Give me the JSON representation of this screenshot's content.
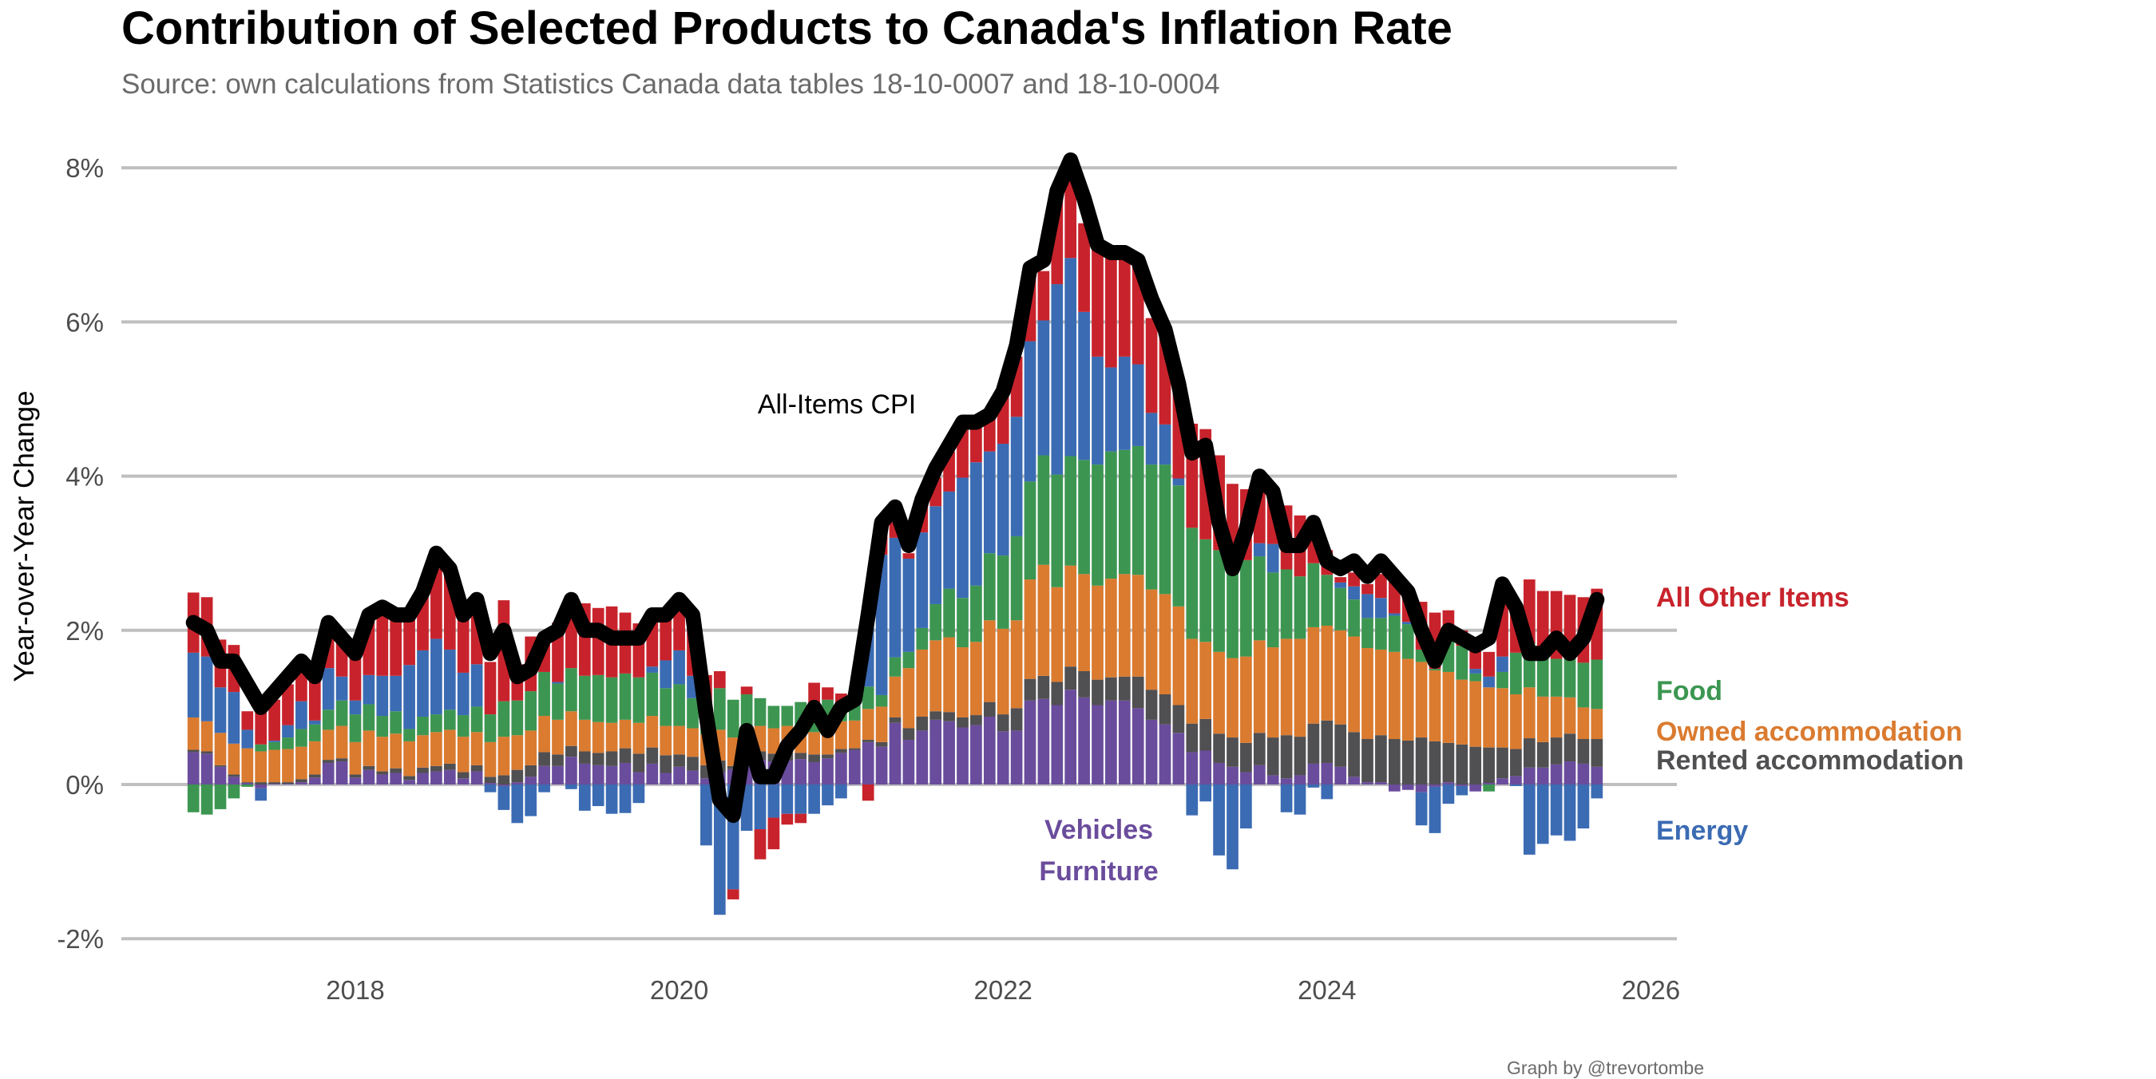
{
  "title": "Contribution of Selected Products to Canada's Inflation Rate",
  "subtitle": "Source: own calculations from Statistics Canada data tables 18-10-0007 and 18-10-0004",
  "credit": "Graph by @trevortombe",
  "chart_data": {
    "type": "bar",
    "stacked": true,
    "title": "Contribution of Selected Products to Canada's Inflation Rate",
    "subtitle": "Source: own calculations from Statistics Canada data tables 18-10-0007 and 18-10-0004",
    "xlabel": "",
    "ylabel": "Year-over-Year Change",
    "ylim": [
      -2,
      8
    ],
    "xlim": [
      2017,
      2026
    ],
    "y_ticks": [
      "-2%",
      "0%",
      "2%",
      "4%",
      "6%",
      "8%"
    ],
    "y_tick_values": [
      -2,
      0,
      2,
      4,
      6,
      8
    ],
    "x_ticks": [
      "2018",
      "2020",
      "2022",
      "2024",
      "2026"
    ],
    "x_tick_values": [
      2018,
      2020,
      2022,
      2024,
      2026
    ],
    "grid": "horizontal",
    "start_month": "2017-01",
    "end_month": "2025-09",
    "series_colors": {
      "purple": "#6A4C9C",
      "rented": "#504F51",
      "owned": "#DA7B30",
      "food": "#3C9651",
      "energy": "#3B6BB3",
      "other": "#C8232C",
      "cpi": "#000000"
    },
    "series": [
      {
        "key": "purple",
        "name": "Vehicles / Furniture",
        "values": [
          0.42,
          0.4,
          0.23,
          0.1,
          0.02,
          -0.05,
          0.01,
          0.01,
          0.03,
          0.09,
          0.28,
          0.3,
          0.09,
          0.19,
          0.13,
          0.15,
          0.06,
          0.15,
          0.17,
          0.19,
          0.08,
          0.17,
          0.02,
          -0.02,
          0.03,
          0.1,
          0.24,
          0.24,
          0.36,
          0.27,
          0.25,
          0.24,
          0.28,
          0.16,
          0.27,
          0.15,
          0.23,
          0.18,
          0.08,
          0.16,
          0.2,
          0.28,
          0.32,
          0.3,
          0.31,
          0.33,
          0.29,
          0.34,
          0.41,
          0.45,
          0.55,
          0.49,
          0.8,
          0.58,
          0.7,
          0.84,
          0.82,
          0.74,
          0.77,
          0.88,
          0.69,
          0.7,
          1.09,
          1.11,
          1.03,
          1.23,
          1.13,
          1.03,
          1.09,
          1.09,
          0.99,
          0.84,
          0.78,
          0.67,
          0.42,
          0.44,
          0.28,
          0.23,
          0.16,
          0.25,
          0.12,
          0.08,
          0.12,
          0.27,
          0.28,
          0.23,
          0.1,
          0.03,
          0.03,
          -0.09,
          -0.07,
          -0.1,
          -0.03,
          0.03,
          -0.02,
          -0.09,
          0.02,
          0.08,
          0.11,
          0.22,
          0.22,
          0.26,
          0.3,
          0.27,
          0.23
        ]
      },
      {
        "key": "rented",
        "name": "Rented accommodation",
        "values": [
          0.03,
          0.03,
          0.02,
          0.03,
          0.01,
          0.03,
          0.02,
          0.02,
          0.04,
          0.04,
          0.04,
          0.04,
          0.04,
          0.05,
          0.04,
          0.06,
          0.05,
          0.07,
          0.07,
          0.08,
          0.08,
          0.08,
          0.08,
          0.12,
          0.16,
          0.15,
          0.18,
          0.15,
          0.14,
          0.16,
          0.16,
          0.19,
          0.19,
          0.24,
          0.21,
          0.23,
          0.16,
          0.18,
          0.17,
          0.15,
          0.04,
          0.13,
          0.11,
          0.1,
          0.1,
          0.08,
          0.1,
          0.05,
          0.05,
          0.02,
          0.03,
          0.06,
          0.07,
          0.15,
          0.18,
          0.11,
          0.12,
          0.13,
          0.13,
          0.19,
          0.22,
          0.29,
          0.28,
          0.3,
          0.3,
          0.3,
          0.34,
          0.33,
          0.3,
          0.31,
          0.41,
          0.39,
          0.39,
          0.36,
          0.37,
          0.41,
          0.38,
          0.38,
          0.38,
          0.42,
          0.49,
          0.56,
          0.5,
          0.52,
          0.55,
          0.55,
          0.58,
          0.56,
          0.61,
          0.59,
          0.57,
          0.61,
          0.56,
          0.51,
          0.52,
          0.49,
          0.46,
          0.4,
          0.35,
          0.38,
          0.33,
          0.35,
          0.36,
          0.32,
          0.36
        ]
      },
      {
        "key": "owned",
        "name": "Owned accommodation",
        "values": [
          0.42,
          0.39,
          0.42,
          0.4,
          0.44,
          0.4,
          0.42,
          0.43,
          0.42,
          0.43,
          0.39,
          0.42,
          0.42,
          0.46,
          0.45,
          0.45,
          0.45,
          0.42,
          0.44,
          0.44,
          0.46,
          0.43,
          0.45,
          0.5,
          0.45,
          0.45,
          0.47,
          0.45,
          0.45,
          0.41,
          0.4,
          0.37,
          0.37,
          0.4,
          0.41,
          0.38,
          0.37,
          0.37,
          0.4,
          0.4,
          0.37,
          0.35,
          0.33,
          0.33,
          0.35,
          0.35,
          0.29,
          0.35,
          0.36,
          0.36,
          0.4,
          0.46,
          0.53,
          0.78,
          0.87,
          0.92,
          0.97,
          0.91,
          0.95,
          1.06,
          1.11,
          1.14,
          1.29,
          1.44,
          1.23,
          1.31,
          1.26,
          1.22,
          1.28,
          1.33,
          1.32,
          1.3,
          1.3,
          1.28,
          1.1,
          1.0,
          1.06,
          1.03,
          1.12,
          1.2,
          1.17,
          1.25,
          1.27,
          1.25,
          1.23,
          1.22,
          1.24,
          1.18,
          1.11,
          1.13,
          1.06,
          0.98,
          0.92,
          0.92,
          0.84,
          0.85,
          0.78,
          0.77,
          0.71,
          0.66,
          0.59,
          0.53,
          0.47,
          0.41,
          0.39
        ]
      },
      {
        "key": "food",
        "name": "Food",
        "values": [
          -0.36,
          -0.39,
          -0.32,
          -0.18,
          -0.03,
          0.09,
          0.1,
          0.15,
          0.23,
          0.22,
          0.26,
          0.33,
          0.36,
          0.34,
          0.27,
          0.29,
          0.16,
          0.24,
          0.23,
          0.26,
          0.28,
          0.33,
          0.36,
          0.46,
          0.45,
          0.51,
          0.57,
          0.47,
          0.56,
          0.57,
          0.61,
          0.59,
          0.6,
          0.59,
          0.56,
          0.49,
          0.54,
          0.39,
          0.35,
          0.54,
          0.49,
          0.41,
          0.36,
          0.29,
          0.26,
          0.31,
          0.38,
          0.36,
          0.16,
          0.2,
          0.29,
          0.15,
          0.25,
          0.21,
          0.28,
          0.47,
          0.63,
          0.64,
          0.73,
          0.87,
          0.95,
          1.09,
          1.27,
          1.42,
          1.46,
          1.42,
          1.48,
          1.57,
          1.65,
          1.61,
          1.67,
          1.62,
          1.68,
          1.57,
          1.44,
          1.33,
          1.32,
          1.11,
          1.25,
          1.09,
          0.97,
          0.9,
          0.81,
          0.83,
          0.66,
          0.55,
          0.48,
          0.39,
          0.41,
          0.47,
          0.45,
          0.16,
          0.02,
          0.46,
          0.44,
          0.1,
          -0.09,
          0.21,
          0.54,
          0.57,
          0.52,
          0.49,
          0.5,
          0.58,
          0.64
        ]
      },
      {
        "key": "energy",
        "name": "Energy",
        "values": [
          0.84,
          0.84,
          0.59,
          0.67,
          0.24,
          -0.16,
          0.02,
          0.16,
          0.36,
          0.05,
          0.54,
          0.31,
          0.18,
          0.38,
          0.52,
          0.46,
          0.83,
          0.86,
          0.98,
          0.78,
          0.55,
          0.55,
          -0.1,
          -0.31,
          -0.5,
          -0.41,
          -0.1,
          0.02,
          -0.06,
          -0.34,
          -0.28,
          -0.38,
          -0.37,
          -0.24,
          0.08,
          0.36,
          0.44,
          0.29,
          -0.79,
          -1.69,
          -1.36,
          -0.6,
          -0.58,
          -0.43,
          -0.38,
          -0.38,
          -0.38,
          -0.27,
          -0.18,
          0.1,
          0.98,
          1.82,
          1.55,
          1.21,
          1.24,
          1.27,
          1.26,
          1.56,
          1.6,
          1.32,
          1.45,
          1.55,
          1.82,
          1.75,
          2.47,
          2.57,
          1.92,
          1.4,
          1.09,
          1.21,
          1.06,
          0.67,
          0.52,
          0.09,
          -0.4,
          -0.22,
          -0.92,
          -1.1,
          -0.57,
          0.17,
          0.37,
          -0.36,
          -0.39,
          -0.04,
          -0.19,
          0.07,
          0.17,
          0.31,
          0.26,
          0.03,
          0.03,
          -0.43,
          -0.6,
          -0.25,
          -0.12,
          0.06,
          0.14,
          0.2,
          -0.02,
          -0.91,
          -0.77,
          -0.66,
          -0.73,
          -0.57,
          -0.18
        ]
      },
      {
        "key": "other",
        "name": "All Other Items",
        "values": [
          0.78,
          0.77,
          0.62,
          0.61,
          0.24,
          0.48,
          0.53,
          0.53,
          0.37,
          0.52,
          0.39,
          0.46,
          0.56,
          0.75,
          0.81,
          0.79,
          0.69,
          0.71,
          0.91,
          1.1,
          0.72,
          0.89,
          0.68,
          1.31,
          0.47,
          0.71,
          0.51,
          0.77,
          0.84,
          0.94,
          0.87,
          0.92,
          0.79,
          0.7,
          0.67,
          0.64,
          0.67,
          0.79,
          0.42,
          0.22,
          -0.13,
          0.1,
          -0.39,
          -0.41,
          -0.14,
          -0.12,
          0.26,
          0.16,
          0.2,
          0.08,
          -0.21,
          0.39,
          0.2,
          0.07,
          0.38,
          0.37,
          0.52,
          0.62,
          0.45,
          0.45,
          0.62,
          0.78,
          0.86,
          0.64,
          1.12,
          1.06,
          1.15,
          1.42,
          1.42,
          1.26,
          1.27,
          1.23,
          1.2,
          1.14,
          1.35,
          1.43,
          1.23,
          1.15,
          0.92,
          0.87,
          0.68,
          0.83,
          0.79,
          0.5,
          0.32,
          0.07,
          0.18,
          0.13,
          0.31,
          0.51,
          0.41,
          0.62,
          0.73,
          0.34,
          0.2,
          0.3,
          0.32,
          0.94,
          0.59,
          0.83,
          0.85,
          0.88,
          0.83,
          0.85,
          0.92
        ]
      }
    ],
    "line": {
      "name": "All-Items CPI",
      "values": [
        2.1,
        2.0,
        1.6,
        1.6,
        1.3,
        1.0,
        1.2,
        1.4,
        1.6,
        1.4,
        2.1,
        1.9,
        1.7,
        2.2,
        2.3,
        2.2,
        2.2,
        2.5,
        3.0,
        2.8,
        2.2,
        2.4,
        1.7,
        2.0,
        1.4,
        1.5,
        1.9,
        2.0,
        2.4,
        2.0,
        2.0,
        1.9,
        1.9,
        1.9,
        2.2,
        2.2,
        2.4,
        2.2,
        0.9,
        -0.2,
        -0.4,
        0.7,
        0.1,
        0.1,
        0.5,
        0.7,
        1.0,
        0.7,
        1.0,
        1.1,
        2.2,
        3.4,
        3.6,
        3.1,
        3.7,
        4.1,
        4.4,
        4.7,
        4.7,
        4.8,
        5.1,
        5.7,
        6.7,
        6.8,
        7.7,
        8.1,
        7.6,
        7.0,
        6.9,
        6.9,
        6.8,
        6.3,
        5.9,
        5.2,
        4.3,
        4.4,
        3.4,
        2.8,
        3.3,
        4.0,
        3.8,
        3.1,
        3.1,
        3.4,
        2.9,
        2.8,
        2.9,
        2.7,
        2.9,
        2.7,
        2.5,
        2.0,
        1.6,
        2.0,
        1.9,
        1.8,
        1.9,
        2.6,
        2.3,
        1.7,
        1.7,
        1.9,
        1.7,
        1.9,
        2.4
      ]
    },
    "annotations": {
      "cpi_label": "All-Items CPI",
      "vehicles_label": "Vehicles",
      "furniture_label": "Furniture"
    },
    "legend": {
      "placement": "right",
      "items": [
        {
          "key": "other",
          "label": "All Other Items"
        },
        {
          "key": "food",
          "label": "Food"
        },
        {
          "key": "owned",
          "label": "Owned accommodation"
        },
        {
          "key": "rented",
          "label": "Rented accommodation"
        },
        {
          "key": "energy",
          "label": "Energy"
        }
      ]
    }
  }
}
